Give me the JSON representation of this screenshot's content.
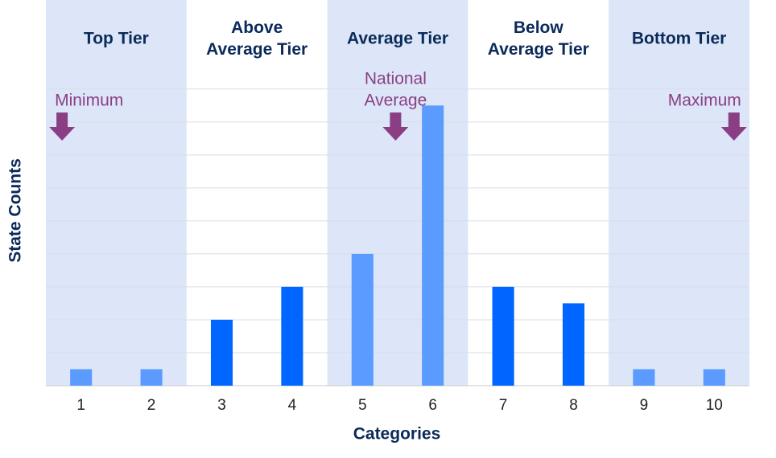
{
  "chart_data": {
    "type": "bar",
    "x_label": "Categories",
    "y_label": "State Counts",
    "x": [
      1,
      2,
      3,
      4,
      5,
      6,
      7,
      8,
      9,
      10
    ],
    "values": [
      0.5,
      0.5,
      2,
      3,
      4,
      8.5,
      3,
      2.5,
      0.5,
      0.5
    ],
    "colors": [
      "#5b9bff",
      "#5b9bff",
      "#0066ff",
      "#0066ff",
      "#5b9bff",
      "#5b9bff",
      "#0066ff",
      "#0066ff",
      "#5b9bff",
      "#5b9bff"
    ],
    "xlim": [
      0.5,
      10.5
    ],
    "ylim": [
      0,
      11.7
    ],
    "yticks": [
      0,
      1,
      2,
      3,
      4,
      5,
      6,
      7,
      8,
      9
    ],
    "show_ytick_labels": false,
    "grid": true,
    "tiers": [
      {
        "lines": [
          "Top Tier"
        ],
        "x": [
          0.5,
          2.5
        ],
        "shaded": true
      },
      {
        "lines": [
          "Above",
          "Average Tier"
        ],
        "x": [
          2.5,
          4.5
        ],
        "shaded": false
      },
      {
        "lines": [
          "Average Tier"
        ],
        "x": [
          4.5,
          6.5
        ],
        "shaded": true
      },
      {
        "lines": [
          "Below",
          "Average Tier"
        ],
        "x": [
          6.5,
          8.5
        ],
        "shaded": false
      },
      {
        "lines": [
          "Bottom Tier"
        ],
        "x": [
          8.5,
          10.5
        ],
        "shaded": true
      }
    ],
    "band_color": "#dce6f8",
    "annotations": [
      {
        "lines": [
          "Minimum"
        ],
        "x": 0.73,
        "anchor": "start"
      },
      {
        "lines": [
          "National",
          "Average"
        ],
        "x": 5.47,
        "anchor": "middle"
      },
      {
        "lines": [
          "Maximum"
        ],
        "x": 10.28,
        "anchor": "end"
      }
    ],
    "annotation_color": "#8a3f84"
  }
}
